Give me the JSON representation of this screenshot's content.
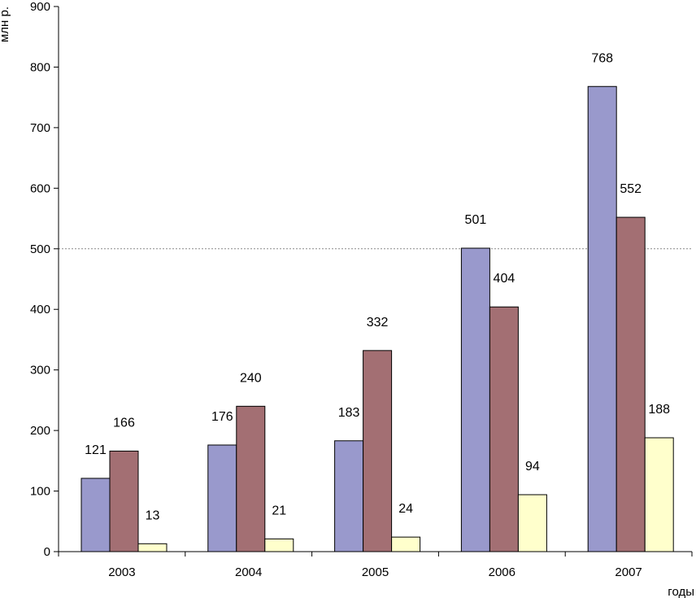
{
  "chart_data": {
    "type": "bar",
    "title": "",
    "ylabel": "млн р.",
    "xlabel": "годы",
    "ylim": [
      0,
      900
    ],
    "yticks": [
      0,
      100,
      200,
      300,
      400,
      500,
      600,
      700,
      800,
      900
    ],
    "reference_line": 500,
    "categories": [
      "2003",
      "2004",
      "2005",
      "2006",
      "2007"
    ],
    "series": [
      {
        "name": "series-1",
        "color": "#9999CC",
        "values": [
          121,
          176,
          183,
          501,
          768
        ]
      },
      {
        "name": "series-2",
        "color": "#A36F73",
        "values": [
          166,
          240,
          332,
          404,
          552
        ]
      },
      {
        "name": "series-3",
        "color": "#FFFFCC",
        "values": [
          13,
          21,
          24,
          94,
          188
        ]
      }
    ]
  }
}
